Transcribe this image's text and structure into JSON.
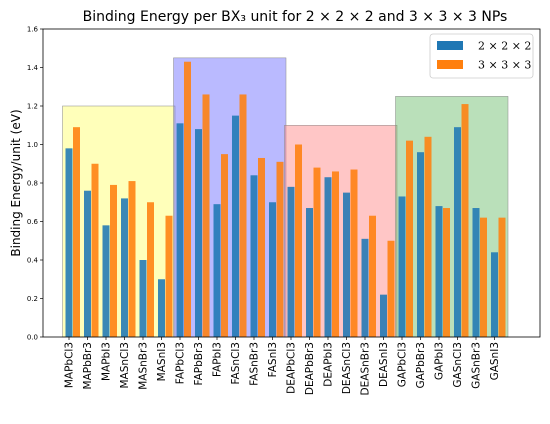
{
  "chart_data": {
    "type": "bar",
    "title": "Binding Energy per BX₃ unit for 2 × 2 × 2 and 3 × 3 × 3 NPs",
    "xlabel": "",
    "ylabel": "Binding Energy/unit (eV)",
    "ylim": [
      0,
      1.6
    ],
    "yticks": [
      "0.0",
      "0.2",
      "0.4",
      "0.6",
      "0.8",
      "1.0",
      "1.2",
      "1.4",
      "1.6"
    ],
    "grid": false,
    "legend_position": "top-right",
    "categories": [
      "MAPbCl3",
      "MAPbBr3",
      "MAPbI3",
      "MASnCl3",
      "MASnBr3",
      "MASnI3",
      "FAPbCl3",
      "FAPbBr3",
      "FAPbI3",
      "FASnCl3",
      "FASnBr3",
      "FASnI3",
      "DEAPbCl3",
      "DEAPbBr3",
      "DEAPbI3",
      "DEASnCl3",
      "DEASnBr3",
      "DEASnI3",
      "GAPbCl3",
      "GAPbBr3",
      "GAPbI3",
      "GASnCl3",
      "GASnBr3",
      "GASnI3"
    ],
    "series": [
      {
        "name": "2 × 2 × 2",
        "color": "#1f77b4",
        "values": [
          0.98,
          0.76,
          0.58,
          0.72,
          0.4,
          0.3,
          1.11,
          1.08,
          0.69,
          1.15,
          0.84,
          0.7,
          0.78,
          0.67,
          0.83,
          0.75,
          0.51,
          0.22,
          0.73,
          0.96,
          0.68,
          1.09,
          0.67,
          0.44
        ]
      },
      {
        "name": "3 × 3 × 3",
        "color": "#ff7f0e",
        "values": [
          1.09,
          0.9,
          0.79,
          0.81,
          0.7,
          0.63,
          1.43,
          1.26,
          0.95,
          1.26,
          0.93,
          0.91,
          1.0,
          0.88,
          0.86,
          0.87,
          0.63,
          0.5,
          1.02,
          1.04,
          0.67,
          1.21,
          0.62,
          0.62
        ]
      }
    ],
    "groups": [
      {
        "start": 0,
        "end": 5,
        "ymax": 1.2,
        "color": "#ffff66"
      },
      {
        "start": 6,
        "end": 11,
        "ymax": 1.45,
        "color": "#6666ff"
      },
      {
        "start": 12,
        "end": 17,
        "ymax": 1.1,
        "color": "#ff8080"
      },
      {
        "start": 18,
        "end": 23,
        "ymax": 1.25,
        "color": "#66bb66"
      }
    ]
  }
}
